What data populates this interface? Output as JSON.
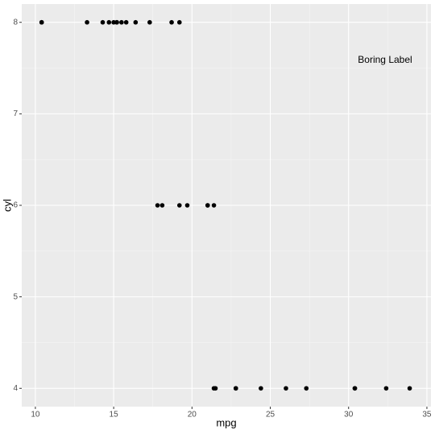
{
  "chart_data": {
    "type": "scatter",
    "x_label": "mpg",
    "y_label": "cyl",
    "annotation": "Boring Label",
    "color": "#000000",
    "x": [
      21.0,
      21.0,
      22.8,
      21.4,
      18.7,
      18.1,
      14.3,
      24.4,
      22.8,
      19.2,
      17.8,
      16.4,
      17.3,
      15.2,
      10.4,
      10.4,
      14.7,
      32.4,
      30.4,
      33.9,
      21.5,
      15.5,
      15.2,
      13.3,
      19.2,
      27.3,
      26.0,
      30.4,
      15.8,
      19.7,
      15.0,
      21.4
    ],
    "values": [
      6,
      6,
      4,
      6,
      8,
      6,
      8,
      4,
      4,
      6,
      6,
      8,
      8,
      8,
      8,
      8,
      8,
      4,
      4,
      4,
      4,
      8,
      8,
      8,
      8,
      4,
      4,
      4,
      8,
      6,
      8,
      4
    ],
    "xlim": [
      9.13,
      35.26
    ],
    "ylim": [
      3.8,
      8.2
    ],
    "xticks": [
      10,
      15,
      20,
      25,
      30,
      35
    ],
    "yticks": [
      4,
      5,
      6,
      7,
      8
    ],
    "grid": true
  }
}
